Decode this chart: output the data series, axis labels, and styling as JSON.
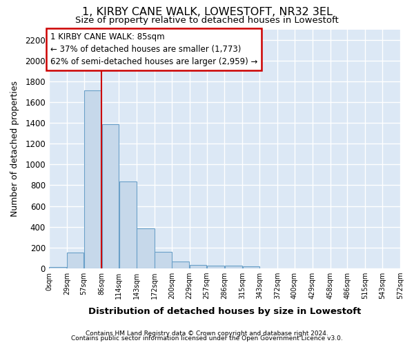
{
  "title": "1, KIRBY CANE WALK, LOWESTOFT, NR32 3EL",
  "subtitle": "Size of property relative to detached houses in Lowestoft",
  "xlabel": "Distribution of detached houses by size in Lowestoft",
  "ylabel": "Number of detached properties",
  "bar_color": "#c6d8ea",
  "bar_edge_color": "#6aa0c8",
  "plot_bg_color": "#dce8f5",
  "fig_bg_color": "#ffffff",
  "grid_color": "#ffffff",
  "marker_line_color": "#cc0000",
  "marker_value": 86,
  "bins": [
    0,
    29,
    57,
    86,
    114,
    143,
    172,
    200,
    229,
    257,
    286,
    315,
    343,
    372,
    400,
    429,
    458,
    486,
    515,
    543,
    572
  ],
  "bar_heights": [
    15,
    155,
    1710,
    1390,
    835,
    385,
    160,
    65,
    35,
    30,
    30,
    20,
    0,
    0,
    0,
    0,
    0,
    0,
    0,
    0
  ],
  "ylim": [
    0,
    2300
  ],
  "yticks": [
    0,
    200,
    400,
    600,
    800,
    1000,
    1200,
    1400,
    1600,
    1800,
    2000,
    2200
  ],
  "annotation_line1": "1 KIRBY CANE WALK: 85sqm",
  "annotation_line2": "← 37% of detached houses are smaller (1,773)",
  "annotation_line3": "62% of semi-detached houses are larger (2,959) →",
  "annotation_box_color": "#ffffff",
  "annotation_box_edge": "#cc0000",
  "footer1": "Contains HM Land Registry data © Crown copyright and database right 2024.",
  "footer2": "Contains public sector information licensed under the Open Government Licence v3.0."
}
